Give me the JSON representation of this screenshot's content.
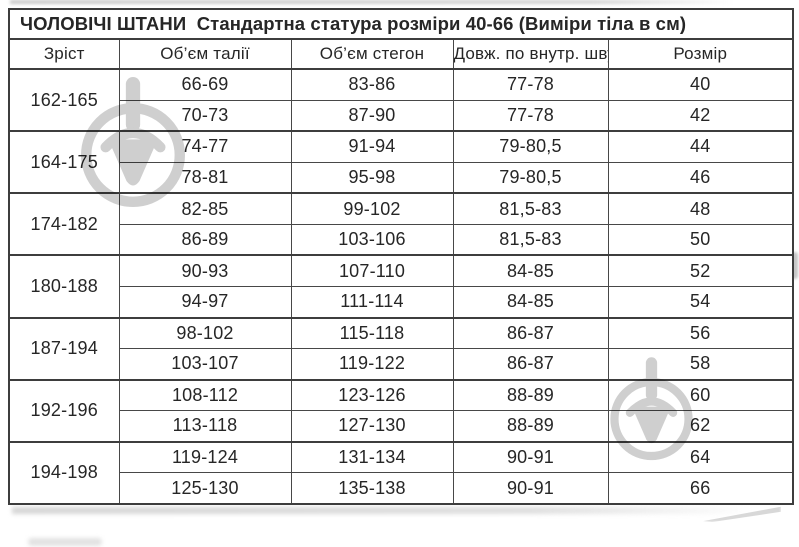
{
  "title": "ЧОЛОВІЧІ ШТАНИ  Стандартна статура розміри 40-66 (Виміри тіла в см)",
  "columns": [
    "Зріст",
    "Об’єм талії",
    "Об’єм стегон",
    "Довж. по внутр. шву",
    "Розмір"
  ],
  "groups": [
    {
      "height": "162-165",
      "rows": [
        [
          "66-69",
          "83-86",
          "77-78",
          "40"
        ],
        [
          "70-73",
          "87-90",
          "77-78",
          "42"
        ]
      ]
    },
    {
      "height": "164-175",
      "rows": [
        [
          "74-77",
          "91-94",
          "79-80,5",
          "44"
        ],
        [
          "78-81",
          "95-98",
          "79-80,5",
          "46"
        ]
      ]
    },
    {
      "height": "174-182",
      "rows": [
        [
          "82-85",
          "99-102",
          "81,5-83",
          "48"
        ],
        [
          "86-89",
          "103-106",
          "81,5-83",
          "50"
        ]
      ]
    },
    {
      "height": "180-188",
      "rows": [
        [
          "90-93",
          "107-110",
          "84-85",
          "52"
        ],
        [
          "94-97",
          "111-114",
          "84-85",
          "54"
        ]
      ]
    },
    {
      "height": "187-194",
      "rows": [
        [
          "98-102",
          "115-118",
          "86-87",
          "56"
        ],
        [
          "103-107",
          "119-122",
          "86-87",
          "58"
        ]
      ]
    },
    {
      "height": "192-196",
      "rows": [
        [
          "108-112",
          "123-126",
          "88-89",
          "60"
        ],
        [
          "113-118",
          "127-130",
          "88-89",
          "62"
        ]
      ]
    },
    {
      "height": "194-198",
      "rows": [
        [
          "119-124",
          "131-134",
          "90-91",
          "64"
        ],
        [
          "125-130",
          "135-138",
          "90-91",
          "66"
        ]
      ]
    }
  ],
  "colors": {
    "line": "#3d3d3d",
    "text": "#262626",
    "watermark": "#cfcfcf",
    "background": "#ffffff"
  },
  "watermark_icon": "circled-plumb-logo-icon"
}
